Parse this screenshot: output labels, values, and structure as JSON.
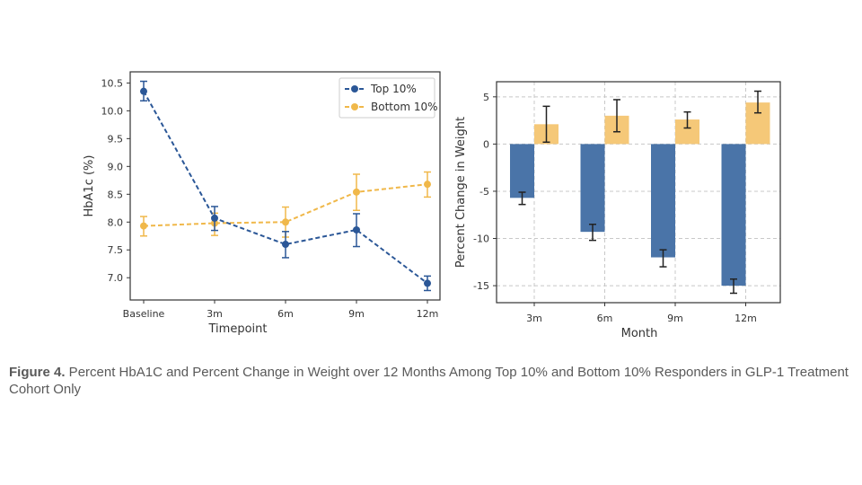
{
  "colors": {
    "top": "#2b5797",
    "bottom": "#f0b84a",
    "bar_top": "#4a74a8",
    "bar_bottom": "#f5c878",
    "axis": "#333333",
    "grid": "#c8c8c8"
  },
  "caption": {
    "label": "Figure 4.",
    "text": " Percent HbA1C and Percent Change in Weight over 12 Months Among Top 10% and Bottom 10% Responders in GLP-1 Treatment Cohort Only"
  },
  "chart_data": [
    {
      "type": "line",
      "title": "",
      "xlabel": "Timepoint",
      "ylabel": "HbA1c (%)",
      "categories": [
        "Baseline",
        "3m",
        "6m",
        "9m",
        "12m"
      ],
      "ylim": [
        6.6,
        10.7
      ],
      "yticks": [
        "7.0",
        "7.5",
        "8.0",
        "8.5",
        "9.0",
        "9.5",
        "10.0",
        "10.5"
      ],
      "grid": false,
      "legend_position": "top-right",
      "series": [
        {
          "name": "Top 10%",
          "values": [
            10.35,
            8.07,
            7.6,
            7.86,
            6.9
          ],
          "err_low": [
            10.18,
            7.85,
            7.36,
            7.56,
            6.77
          ],
          "err_high": [
            10.53,
            8.28,
            7.83,
            8.15,
            7.03
          ]
        },
        {
          "name": "Bottom 10%",
          "values": [
            7.93,
            7.98,
            8.0,
            8.54,
            8.68
          ],
          "err_low": [
            7.75,
            7.76,
            7.73,
            8.21,
            8.45
          ],
          "err_high": [
            8.1,
            8.16,
            8.27,
            8.86,
            8.9
          ]
        }
      ]
    },
    {
      "type": "bar",
      "title": "",
      "xlabel": "Month",
      "ylabel": "Percent Change in Weight",
      "categories": [
        "3m",
        "6m",
        "9m",
        "12m"
      ],
      "ylim": [
        -16.8,
        6.6
      ],
      "yticks": [
        "5",
        "0",
        "-5",
        "-10",
        "-15"
      ],
      "grid": true,
      "series": [
        {
          "name": "Top 10%",
          "values": [
            -5.7,
            -9.3,
            -12.0,
            -15.0
          ],
          "err_low": [
            -6.4,
            -10.2,
            -13.0,
            -15.8
          ],
          "err_high": [
            -5.1,
            -8.5,
            -11.2,
            -14.3
          ]
        },
        {
          "name": "Bottom 10%",
          "values": [
            2.1,
            3.0,
            2.6,
            4.4
          ],
          "err_low": [
            0.2,
            1.3,
            1.7,
            3.3
          ],
          "err_high": [
            4.0,
            4.7,
            3.4,
            5.6
          ]
        }
      ]
    }
  ]
}
